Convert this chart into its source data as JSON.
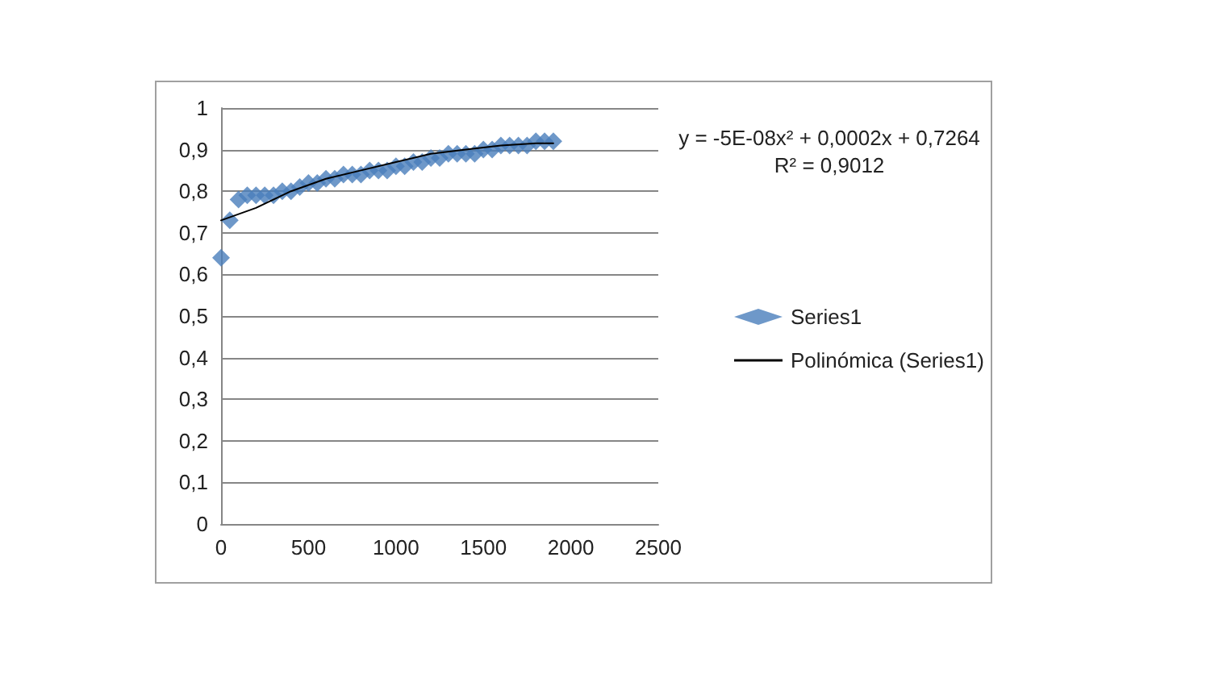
{
  "chart_data": {
    "type": "scatter",
    "xlim": [
      0,
      2500
    ],
    "xticks": [
      0,
      500,
      1000,
      1500,
      2000,
      2500
    ],
    "ylim": [
      0,
      1
    ],
    "yticks": [
      0,
      {
        "value": 0.1,
        "label": "0,1"
      },
      {
        "value": 0.2,
        "label": "0,2"
      },
      {
        "value": 0.3,
        "label": "0,3"
      },
      {
        "value": 0.4,
        "label": "0,4"
      },
      {
        "value": 0.5,
        "label": "0,5"
      },
      {
        "value": 0.6,
        "label": "0,6"
      },
      {
        "value": 0.7,
        "label": "0,7"
      },
      {
        "value": 0.8,
        "label": "0,8"
      },
      {
        "value": 0.9,
        "label": "0,9"
      },
      1
    ],
    "grid": "y",
    "legend": "right",
    "marker": "diamond",
    "annotations": [
      "y = -5E-08x² + 0,0002x + 0,7264",
      "R² = 0,9012"
    ],
    "series": [
      {
        "name": "Series1",
        "color": "#4a7ebb",
        "x": [
          0,
          50,
          100,
          150,
          200,
          250,
          300,
          350,
          400,
          450,
          500,
          550,
          600,
          650,
          700,
          750,
          800,
          850,
          900,
          950,
          1000,
          1050,
          1100,
          1150,
          1200,
          1250,
          1300,
          1350,
          1400,
          1450,
          1500,
          1550,
          1600,
          1650,
          1700,
          1750,
          1800,
          1850,
          1900
        ],
        "values": [
          0.64,
          0.73,
          0.78,
          0.79,
          0.79,
          0.79,
          0.79,
          0.8,
          0.8,
          0.81,
          0.82,
          0.82,
          0.83,
          0.83,
          0.84,
          0.84,
          0.84,
          0.85,
          0.85,
          0.85,
          0.86,
          0.86,
          0.87,
          0.87,
          0.88,
          0.88,
          0.89,
          0.89,
          0.89,
          0.89,
          0.9,
          0.9,
          0.91,
          0.91,
          0.91,
          0.91,
          0.92,
          0.92,
          0.92
        ]
      },
      {
        "name": "Polinómica (Series1)",
        "type": "line",
        "color": "#000000",
        "line_style": "solid",
        "marker": "none",
        "x": [
          0,
          200,
          400,
          600,
          800,
          1000,
          1200,
          1400,
          1600,
          1800,
          1900
        ],
        "values": [
          0.73,
          0.76,
          0.8,
          0.83,
          0.85,
          0.87,
          0.89,
          0.9,
          0.91,
          0.915,
          0.915
        ]
      }
    ]
  }
}
